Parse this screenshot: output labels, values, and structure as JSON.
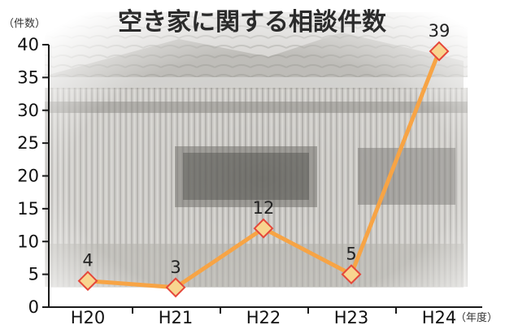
{
  "chart_data": {
    "type": "line",
    "title": "空き家に関する相談件数",
    "y_unit_label": "（件数）",
    "x_unit_label": "（年度）",
    "categories": [
      "H20",
      "H21",
      "H22",
      "H23",
      "H24"
    ],
    "values": [
      4,
      3,
      12,
      5,
      39
    ],
    "data_labels": [
      "4",
      "3",
      "12",
      "5",
      "39"
    ],
    "ylim": [
      0,
      40
    ],
    "yticks": [
      "0",
      "5",
      "10",
      "15",
      "20",
      "25",
      "30",
      "35",
      "40"
    ],
    "grid": false,
    "legend": "none",
    "colors": {
      "line": "#f7a445",
      "marker_fill": "#f8d58f",
      "marker_stroke": "#e5473a",
      "axis": "#1a1a1a",
      "background_photo": "#9a9892"
    },
    "background": "photo of a dilapidated abandoned house"
  }
}
